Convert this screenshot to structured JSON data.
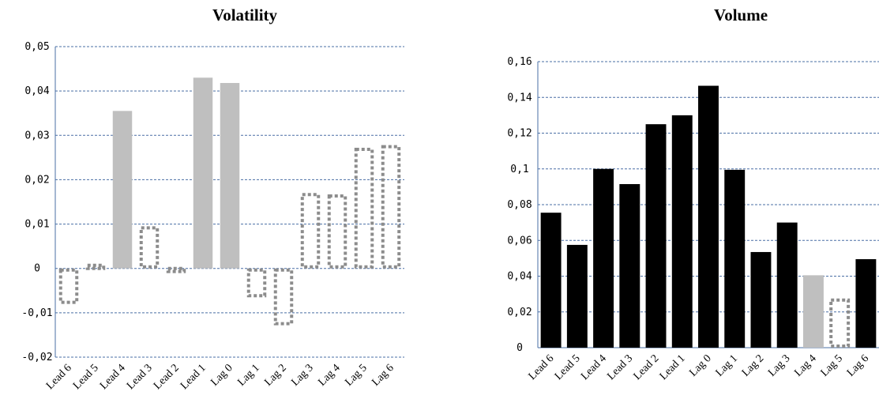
{
  "chart_data": [
    {
      "type": "bar",
      "title": "Volatility",
      "categories": [
        "Lead 6",
        "Lead 5",
        "Lead 4",
        "Lead 3",
        "Lead 2",
        "Lead 1",
        "Lag 0",
        "Lag 1",
        "Lag 2",
        "Lag 3",
        "Lag 4",
        "Lag 5",
        "Lag 6"
      ],
      "values": [
        -0.008,
        0.0007,
        0.0355,
        0.0095,
        -0.0007,
        0.043,
        0.0418,
        -0.0065,
        -0.0128,
        0.017,
        0.0167,
        0.0272,
        0.0278
      ],
      "styles": [
        "dashed",
        "dashed",
        "solid",
        "dashed",
        "dashed",
        "solid",
        "solid",
        "dashed",
        "dashed",
        "dashed",
        "dashed",
        "dashed",
        "dashed"
      ],
      "yticks": [
        "0,05",
        "0,04",
        "0,03",
        "0,02",
        "0,01",
        "0",
        "-0,01",
        "-0,02"
      ],
      "ylim": [
        -0.02,
        0.05
      ],
      "grid": true,
      "solid_color": "#bfbfbf",
      "dashed_color": "#8c8c8c"
    },
    {
      "type": "bar",
      "title": "Volume",
      "categories": [
        "Lead 6",
        "Lead 5",
        "Lead 4",
        "Lead 3",
        "Lead 2",
        "Lead 1",
        "Lag 0",
        "Lag 1",
        "Lag 2",
        "Lag 3",
        "Lag 4",
        "Lag 5",
        "Lag 6"
      ],
      "values": [
        0.0755,
        0.0575,
        0.1,
        0.0915,
        0.125,
        0.13,
        0.1465,
        0.0995,
        0.0535,
        0.07,
        0.0405,
        0.0275,
        0.0495
      ],
      "styles": [
        "black",
        "black",
        "black",
        "black",
        "black",
        "black",
        "black",
        "black",
        "black",
        "black",
        "gray",
        "dashed",
        "black"
      ],
      "yticks": [
        "0,16",
        "0,14",
        "0,12",
        "0,1",
        "0,08",
        "0,06",
        "0,04",
        "0,02",
        "0"
      ],
      "ylim": [
        0,
        0.16
      ],
      "grid": true,
      "black_color": "#000000",
      "gray_color": "#bfbfbf",
      "dashed_color": "#8c8c8c"
    }
  ]
}
